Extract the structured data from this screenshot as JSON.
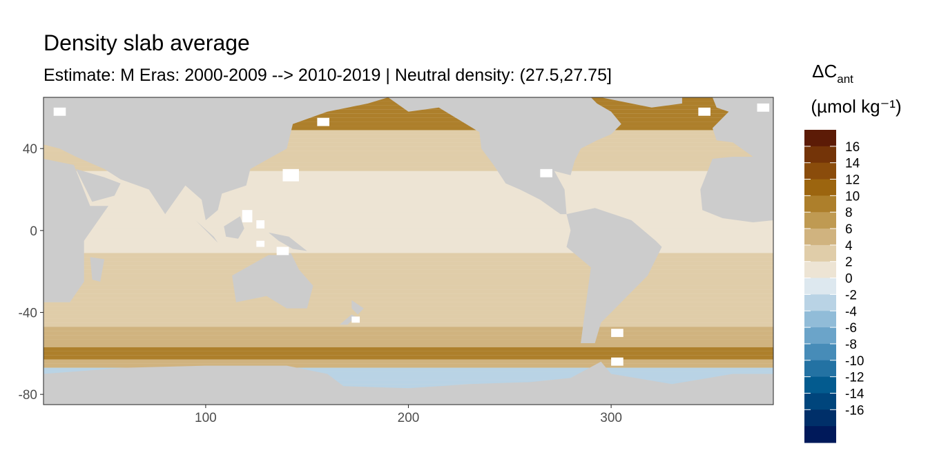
{
  "chart_data": {
    "type": "heatmap",
    "title": "Density slab average",
    "subtitle": "Estimate: M Eras: 2000-2009 --> 2010-2019 | Neutral density: (27.5,27.75]",
    "xlabel": "",
    "ylabel": "",
    "xlim": [
      20,
      380
    ],
    "ylim": [
      -85,
      65
    ],
    "x_ticks": [
      100,
      200,
      300
    ],
    "y_ticks": [
      40,
      0,
      -40,
      -80
    ],
    "x_tick_labels": [
      "100",
      "200",
      "300"
    ],
    "y_tick_labels": [
      "40",
      "0",
      "-40",
      "-80"
    ],
    "legend": {
      "title_main": "ΔC",
      "title_sub": "ant",
      "title_units": "(µmol kg⁻¹)",
      "placement": "right",
      "labels": [
        "16",
        "14",
        "12",
        "10",
        "8",
        "6",
        "4",
        "2",
        "0",
        "-2",
        "-4",
        "-6",
        "-8",
        "-10",
        "-12",
        "-14",
        "-16"
      ],
      "colors": [
        "#5c1b06",
        "#743408",
        "#8a4c0b",
        "#9c650f",
        "#ad7f2b",
        "#bf9a52",
        "#d0b37f",
        "#e0cda9",
        "#ede4d4",
        "#dde8ef",
        "#b9d3e5",
        "#91bcd8",
        "#6ba4c9",
        "#478cb8",
        "#2372a3",
        "#035b8f",
        "#00457c",
        "#002f69",
        "#00195a"
      ]
    },
    "land_color": "#cccccc",
    "missing_color": "#ffffff",
    "grid": false,
    "value_note_zonal_means": [
      {
        "lat": 60,
        "value": 9
      },
      {
        "lat": 40,
        "value": 2
      },
      {
        "lat": 20,
        "value": 1
      },
      {
        "lat": 0,
        "value": 0.5
      },
      {
        "lat": -20,
        "value": 1.5
      },
      {
        "lat": -40,
        "value": 2
      },
      {
        "lat": -55,
        "value": 5
      },
      {
        "lat": -60,
        "value": 8
      },
      {
        "lat": -65,
        "value": 4
      },
      {
        "lat": -70,
        "value": -4
      }
    ]
  }
}
